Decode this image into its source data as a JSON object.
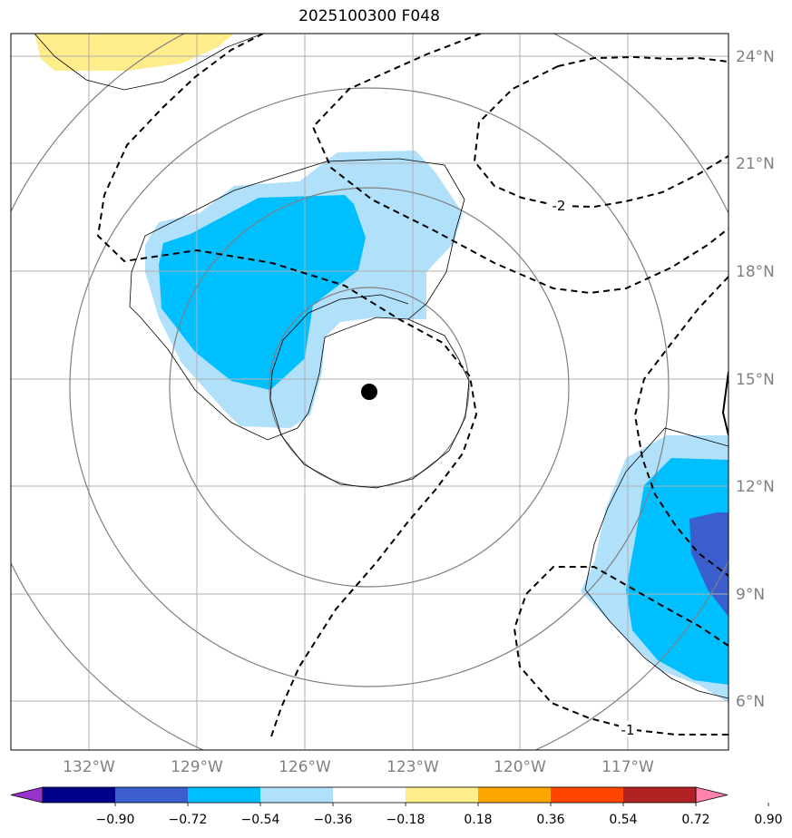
{
  "title": "2025100300 F048",
  "colors": {
    "light_blue": "#b0e0fa",
    "mid_blue": "#00bfff",
    "dark_blue": "#3a5fcd",
    "light_yellow": "#ffec8b",
    "gridline": "#b0b0b0",
    "radius_circle": "#808080",
    "contour": "#000000",
    "center_marker": "#000000"
  },
  "map": {
    "longitude_labels": [
      "132°W",
      "129°W",
      "126°W",
      "123°W",
      "120°W",
      "117°W"
    ],
    "latitude_labels": [
      "24°N",
      "21°N",
      "18°N",
      "15°N",
      "12°N",
      "9°N",
      "6°N"
    ],
    "contour_labels": [
      "-2",
      "-1"
    ]
  },
  "colorbar": {
    "labels": [
      "−0.90",
      "−0.72",
      "−0.54",
      "−0.36",
      "−0.18",
      "0.18",
      "0.36",
      "0.54",
      "0.72",
      "0.90"
    ],
    "colors": [
      "#9932cc",
      "#00008b",
      "#3a5fcd",
      "#00bfff",
      "#b0e0fa",
      "#ffffff",
      "#ffec8b",
      "#ffa500",
      "#ff4500",
      "#b22222",
      "#ff82ab"
    ]
  }
}
